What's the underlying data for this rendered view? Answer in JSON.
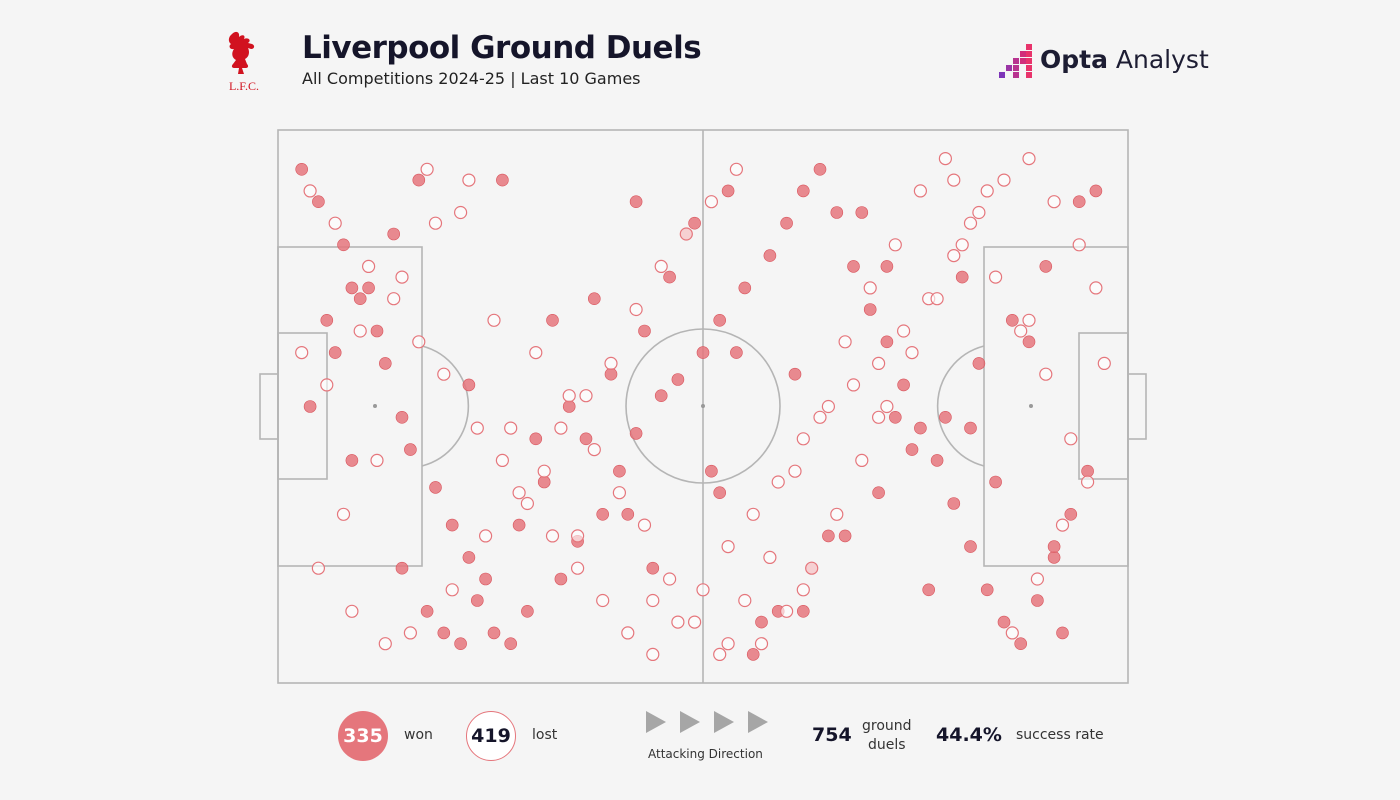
{
  "header": {
    "title": "Liverpool Ground Duels",
    "subtitle": "All Competitions 2024-25 | Last 10 Games",
    "club_logo_text": "L.F.C.",
    "brand": {
      "part1": "Opta",
      "part2": " Analyst"
    }
  },
  "colors": {
    "won": "#e5767c",
    "lost": "#e5767c",
    "pitch_lines": "#b5b5b5",
    "background": "#f5f5f5"
  },
  "legend": {
    "won_count": "335",
    "won_label": "won",
    "lost_count": "419",
    "lost_label": "lost",
    "direction_label": "Attacking Direction",
    "total": "754",
    "total_label_1": "ground",
    "total_label_2": "duels",
    "success_rate": "44.4%",
    "success_label": "success rate"
  },
  "chart_data": {
    "type": "scatter",
    "title": "Liverpool Ground Duels",
    "subtitle": "All Competitions 2024-25 | Last 10 Games",
    "x_range": [
      0,
      100
    ],
    "y_range": [
      0,
      100
    ],
    "note_axes": "x = pitch length (0 own goal, 100 opponent goal), y = pitch width",
    "series": [
      {
        "name": "won",
        "x": [
          2,
          4,
          7,
          8,
          11,
          12,
          14,
          15,
          18,
          20,
          22,
          23,
          25,
          27,
          29,
          33,
          35,
          38,
          40,
          42,
          45,
          47,
          50,
          52,
          55,
          58,
          60,
          62,
          64,
          66,
          68,
          70,
          72,
          74,
          76,
          78,
          80,
          82,
          84,
          86,
          88,
          90,
          92,
          94,
          96,
          3,
          6,
          9,
          13,
          16,
          19,
          24,
          28,
          31,
          36,
          39,
          43,
          46,
          49,
          53,
          56,
          59,
          63,
          67,
          71,
          75,
          79,
          83,
          87,
          91,
          95,
          5,
          10,
          17,
          21,
          26,
          30,
          34,
          37,
          41,
          44,
          48,
          51,
          54,
          57,
          61,
          65,
          69,
          73,
          77,
          81,
          85,
          89,
          93,
          97,
          8,
          14,
          22,
          32,
          42,
          52,
          62,
          72,
          82,
          92
        ],
        "y": [
          94,
          88,
          80,
          72,
          64,
          58,
          48,
          42,
          35,
          28,
          22,
          14,
          8,
          6,
          12,
          18,
          25,
          30,
          38,
          45,
          52,
          55,
          60,
          66,
          72,
          78,
          84,
          90,
          94,
          86,
          76,
          68,
          62,
          54,
          46,
          40,
          32,
          24,
          16,
          10,
          6,
          14,
          22,
          30,
          38,
          50,
          60,
          70,
          82,
          92,
          8,
          18,
          28,
          36,
          44,
          56,
          64,
          74,
          84,
          90,
          4,
          12,
          20,
          26,
          34,
          42,
          48,
          58,
          66,
          76,
          88,
          66,
          72,
          12,
          6,
          92,
          44,
          50,
          70,
          30,
          20,
          82,
          38,
          60,
          10,
          56,
          26,
          86,
          48,
          16,
          74,
          36,
          62,
          8,
          90,
          40,
          20,
          54,
          66,
          88,
          34,
          12,
          76,
          46,
          24
        ]
      },
      {
        "name": "lost",
        "x": [
          3,
          6,
          10,
          13,
          16,
          19,
          23,
          26,
          29,
          32,
          35,
          38,
          41,
          44,
          47,
          50,
          53,
          56,
          59,
          62,
          65,
          68,
          71,
          74,
          77,
          80,
          83,
          86,
          89,
          92,
          95,
          97,
          4,
          8,
          12,
          17,
          21,
          25,
          30,
          34,
          37,
          40,
          43,
          46,
          49,
          52,
          55,
          58,
          61,
          64,
          67,
          70,
          73,
          76,
          79,
          82,
          85,
          88,
          91,
          94,
          2,
          7,
          11,
          15,
          20,
          24,
          28,
          33,
          36,
          39,
          42,
          45,
          48,
          51,
          54,
          57,
          60,
          63,
          66,
          69,
          72,
          75,
          78,
          81,
          84,
          87,
          90,
          93,
          96,
          5,
          9,
          14,
          18,
          22,
          27,
          31,
          35,
          44,
          53,
          62,
          71,
          80,
          89,
          98
        ],
        "y": [
          90,
          84,
          76,
          70,
          62,
          56,
          46,
          40,
          32,
          26,
          20,
          14,
          8,
          4,
          10,
          16,
          24,
          30,
          36,
          44,
          50,
          54,
          58,
          64,
          70,
          78,
          86,
          92,
          96,
          88,
          80,
          72,
          20,
          12,
          6,
          94,
          86,
          66,
          60,
          52,
          42,
          34,
          28,
          18,
          10,
          4,
          14,
          22,
          38,
          48,
          62,
          72,
          80,
          90,
          96,
          84,
          74,
          64,
          56,
          44,
          60,
          30,
          40,
          8,
          16,
          26,
          34,
          46,
          52,
          58,
          68,
          76,
          82,
          88,
          94,
          6,
          12,
          20,
          30,
          40,
          50,
          60,
          70,
          80,
          90,
          8,
          18,
          28,
          36,
          54,
          64,
          74,
          84,
          92,
          46,
          38,
          26,
          14,
          6,
          16,
          48,
          92,
          66,
          58
        ]
      }
    ]
  }
}
